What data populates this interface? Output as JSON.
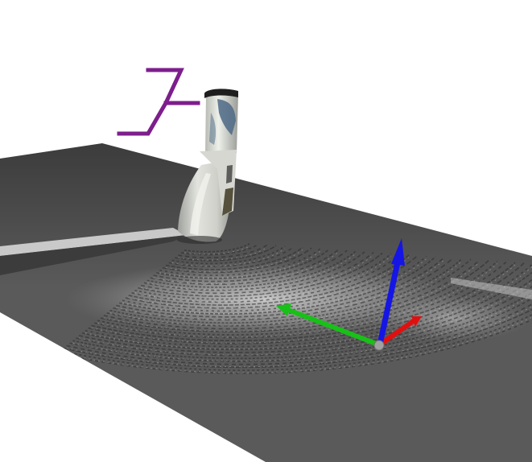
{
  "viewport": {
    "background_color": "#ffffff"
  },
  "ground_plane": {
    "surface_color": "#5a5a5a",
    "dark_color": "#3c3c3c",
    "highlight_color": "#d8d8d8"
  },
  "camera_frame_marker": {
    "color": "#7d1e8c"
  },
  "object_model": {
    "body_color": "#c9cbc4",
    "label_color": "#4d6a86",
    "cap_color": "#1e1e1e"
  },
  "axes_gizmo": {
    "x_axis_color": "#e01010",
    "y_axis_color": "#18c018",
    "z_axis_color": "#1515e6",
    "origin_color": "#a0a0a0"
  }
}
